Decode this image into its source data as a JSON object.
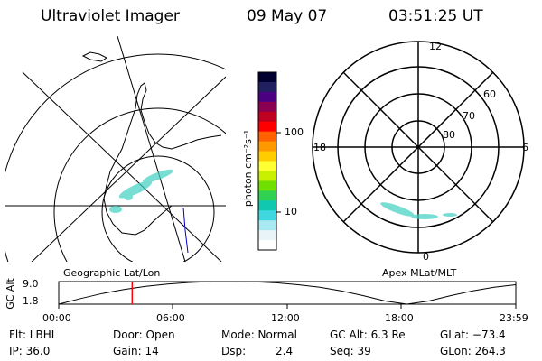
{
  "header": {
    "instrument": "Ultraviolet Imager",
    "date": "09 May 07",
    "time": "03:51:25 UT"
  },
  "colorbar": {
    "label": "photon cm⁻²s⁻¹",
    "ticks": [
      "100",
      "10"
    ],
    "colors": [
      "#000030",
      "#202060",
      "#4b0082",
      "#8b0050",
      "#c00020",
      "#ff0000",
      "#ff6000",
      "#ff9900",
      "#ffcc00",
      "#ffff33",
      "#c8f000",
      "#70e000",
      "#30d050",
      "#10c8b0",
      "#40d8e0",
      "#a8e8f0",
      "#e8f4f8",
      "#ffffff"
    ]
  },
  "left_map": {
    "title": "Geographic Lat/Lon"
  },
  "right_map": {
    "title": "Apex MLat/MLT",
    "hour_labels": {
      "top": "12",
      "left": "18",
      "right": "6",
      "bottom": "0"
    },
    "lat_labels": [
      "60",
      "70",
      "80"
    ]
  },
  "timeline": {
    "ylabel": "GC Alt",
    "yticks": [
      "9.0",
      "1.8"
    ],
    "xticks": [
      "00:00",
      "06:00",
      "12:00",
      "18:00",
      "23:59"
    ],
    "marker_color": "#ff0000",
    "orbit_samples": [
      1.8,
      3.6,
      5.2,
      6.5,
      7.5,
      8.2,
      8.7,
      9.0,
      9.0,
      8.9,
      8.6,
      8.0,
      7.2,
      6.0,
      4.5,
      2.8,
      1.8,
      2.8,
      4.5,
      6.0,
      7.2,
      8.0
    ],
    "marker_time": "03:51:25"
  },
  "info": {
    "flt": "Flt: LBHL",
    "ip": "IP: 36.0",
    "door": "Door: Open",
    "gain": "Gain: 14",
    "mode": "Mode: Normal",
    "dsp_label": "Dsp:",
    "dsp_value": "2.4",
    "gc_alt": "GC Alt: 6.3 Re",
    "seq": "Seq: 39",
    "glat": "GLat: −73.4",
    "glon": "GLon: 264.3"
  }
}
